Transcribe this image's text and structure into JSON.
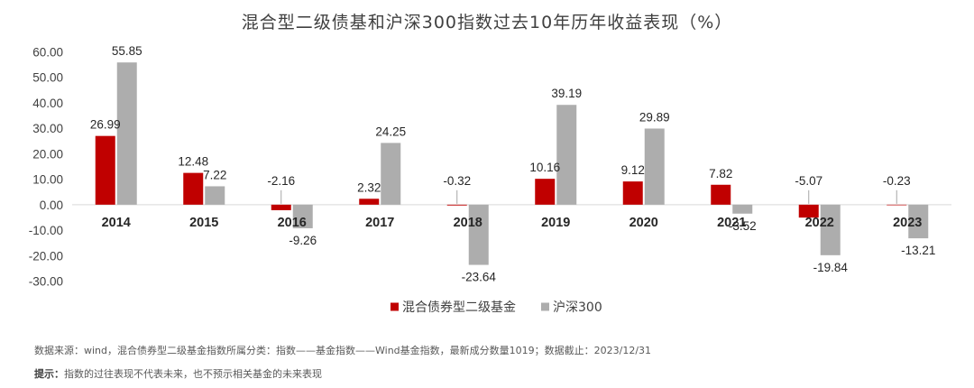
{
  "chart_data": {
    "type": "bar",
    "title": "混合型二级债基和沪深300指数过去10年历年收益表现（%）",
    "categories": [
      "2014",
      "2015",
      "2016",
      "2017",
      "2018",
      "2019",
      "2020",
      "2021",
      "2022",
      "2023"
    ],
    "series": [
      {
        "name": "混合债券型二级基金",
        "color": "#C00000",
        "values": [
          26.99,
          12.48,
          -2.16,
          2.32,
          -0.32,
          10.16,
          9.12,
          7.82,
          -5.07,
          -0.23
        ],
        "labels": [
          "26.99",
          "12.48",
          "-2.16",
          "2.32",
          "-0.32",
          "10.16",
          "9.12",
          "7.82",
          "-5.07",
          "-0.23"
        ]
      },
      {
        "name": "沪深300",
        "color": "#ADADAD",
        "values": [
          55.85,
          7.22,
          -9.26,
          24.25,
          -23.64,
          39.19,
          29.89,
          -3.52,
          -19.84,
          -13.21
        ],
        "labels": [
          "55.85",
          "7.22",
          "-9.26",
          "24.25",
          "-23.64",
          "39.19",
          "29.89",
          "-3.52",
          "-19.84",
          "-13.21"
        ]
      }
    ],
    "yticks": [
      "60.00",
      "50.00",
      "40.00",
      "30.00",
      "20.00",
      "10.00",
      "0.00",
      "-10.00",
      "-20.00",
      "-30.00"
    ],
    "ylim": [
      -30,
      60
    ],
    "grid": false,
    "legend": "bottom"
  },
  "footnote": {
    "source": "数据来源：wind，混合债券型二级基金指数所属分类：指数——基金指数——Wind基金指数，最新成分数量1019；数据截止：2023/12/31",
    "tip_label": "提示：",
    "tip_text": "指数的过往表现不代表未来，也不预示相关基金的未来表现"
  }
}
